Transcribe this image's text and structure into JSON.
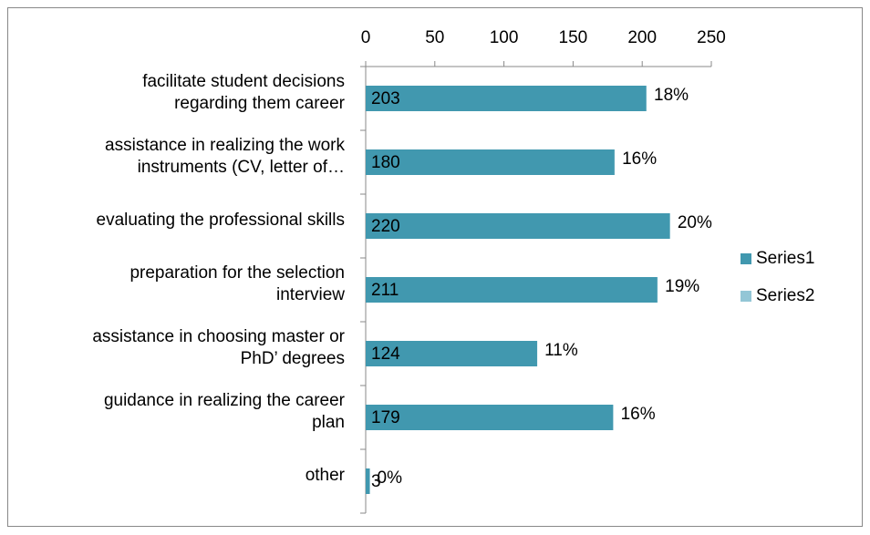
{
  "chart_data": {
    "type": "bar",
    "orientation": "horizontal",
    "stacked": true,
    "categories": [
      "facilitate student decisions\nregarding them career",
      "assistance in realizing the work\ninstruments (CV, letter of…",
      "evaluating the professional skills",
      "preparation for the selection\ninterview",
      "assistance in choosing master or\nPhD’ degrees",
      "guidance in realizing the career\nplan",
      "other"
    ],
    "series": [
      {
        "name": "Series1",
        "color": "#4198af",
        "values": [
          203,
          180,
          220,
          211,
          124,
          179,
          3
        ]
      },
      {
        "name": "Series2",
        "color": "#93c6d6",
        "values": [
          0.181,
          0.161,
          0.196,
          0.188,
          0.111,
          0.16,
          0.003
        ],
        "value_labels": [
          "18%",
          "16%",
          "20%",
          "19%",
          "11%",
          "16%",
          "0%"
        ]
      }
    ],
    "xlim": [
      0,
      250
    ],
    "xticks": [
      0,
      50,
      100,
      150,
      200,
      250
    ],
    "legend": "right",
    "grid": false
  }
}
